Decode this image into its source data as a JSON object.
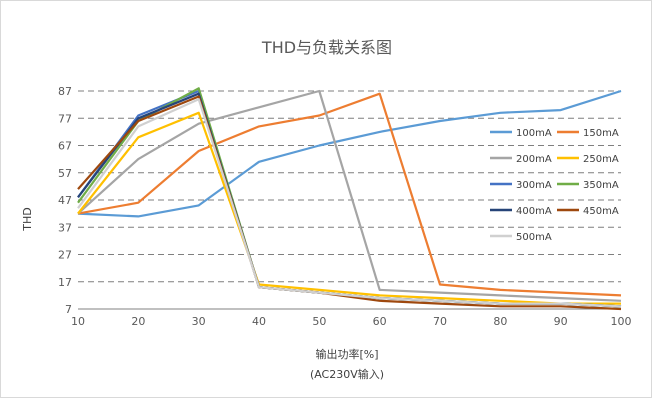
{
  "chart_data": {
    "type": "line",
    "title": "THD与负载关系图",
    "xlabel_line1": "输出功率[%]",
    "xlabel_line2": "(AC230V输入)",
    "ylabel": "THD",
    "x": [
      10,
      20,
      30,
      40,
      50,
      60,
      70,
      80,
      90,
      100
    ],
    "x_ticks": [
      10,
      20,
      30,
      40,
      50,
      60,
      70,
      80,
      90,
      100
    ],
    "y_ticks": [
      7,
      17,
      27,
      37,
      47,
      57,
      67,
      77,
      87
    ],
    "xlim": [
      10,
      100
    ],
    "ylim": [
      7,
      87
    ],
    "grid": "horizontal dashed",
    "legend_position": "right",
    "series": [
      {
        "name": "100mA",
        "color": "#5b9bd5",
        "values": [
          42,
          41,
          45,
          61,
          67,
          72,
          76,
          79,
          80,
          87
        ]
      },
      {
        "name": "150mA",
        "color": "#ed7d31",
        "values": [
          42,
          46,
          65,
          74,
          78,
          86,
          16,
          14,
          13,
          12
        ]
      },
      {
        "name": "200mA",
        "color": "#a5a5a5",
        "values": [
          42,
          62,
          75,
          81,
          87,
          14,
          13,
          12,
          11,
          10
        ]
      },
      {
        "name": "250mA",
        "color": "#ffc000",
        "values": [
          42,
          70,
          79,
          16,
          14,
          12,
          11,
          10,
          9,
          9
        ]
      },
      {
        "name": "300mA",
        "color": "#4472c4",
        "values": [
          48,
          78,
          87,
          15,
          13,
          11,
          10,
          9,
          9,
          8
        ]
      },
      {
        "name": "350mA",
        "color": "#70ad47",
        "values": [
          46,
          76,
          88,
          15,
          13,
          11,
          10,
          9,
          9,
          8
        ]
      },
      {
        "name": "400mA",
        "color": "#264478",
        "values": [
          48,
          77,
          86,
          15,
          13,
          11,
          10,
          9,
          9,
          8
        ]
      },
      {
        "name": "450mA",
        "color": "#9e480e",
        "values": [
          51,
          76,
          85,
          15,
          13,
          10,
          9,
          8,
          8,
          7
        ]
      },
      {
        "name": "500mA",
        "color": "#d0d0d0",
        "values": [
          44,
          74,
          84,
          15,
          13,
          11,
          10,
          9,
          9,
          8
        ]
      }
    ]
  }
}
